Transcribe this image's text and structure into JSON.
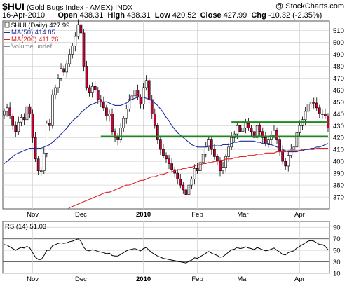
{
  "header": {
    "symbol": "$HUI",
    "description": "(Gold Bugs Index - AMEX)",
    "exchange": "INDX",
    "watermark": "@ StockCharts.com",
    "date": "16-Apr-2010",
    "open_label": "Open",
    "open": "438.31",
    "high_label": "High",
    "high": "438.31",
    "low_label": "Low",
    "low": "420.52",
    "close_label": "Close",
    "close": "427.99",
    "chg_label": "Chg",
    "chg": "-10.32 (-2.35%)"
  },
  "colors": {
    "up_candle": "#ffffff",
    "down_candle": "#cc0033",
    "ma50": "#1f2d9c",
    "ma200": "#e02020",
    "level_lines": "#1a8a1a",
    "grid": "#cfcfcf",
    "rsi_line": "#000000"
  },
  "chart_data": [
    {
      "type": "candlestick",
      "legend": [
        {
          "label": "$HUI (Daily) 427.99",
          "color": "#000000"
        },
        {
          "label": "MA(50) 414.85",
          "color": "#1f2d9c"
        },
        {
          "label": "MA(200) 411.26",
          "color": "#e02020"
        },
        {
          "label": "Volume undef",
          "color": "#888888"
        }
      ],
      "legend_position": "top-left",
      "grid": true,
      "y_axis_side": "right",
      "ylim": [
        360,
        518
      ],
      "y_ticks": [
        370,
        380,
        390,
        400,
        410,
        420,
        430,
        440,
        450,
        460,
        470,
        480,
        490,
        500,
        510
      ],
      "x_tick_labels": [
        "Nov",
        "Dec",
        "2010",
        "Feb",
        "Mar",
        "Apr"
      ],
      "x_tick_positions": [
        10,
        27,
        49,
        68,
        84,
        104
      ],
      "x_count": 115,
      "horizontal_levels": [
        {
          "value": 421,
          "from": 34,
          "to": 115
        },
        {
          "value": 433,
          "from": 80,
          "to": 115
        }
      ],
      "close": [
        442,
        445,
        438,
        430,
        425,
        433,
        437,
        435,
        446,
        440,
        420,
        402,
        392,
        392,
        407,
        432,
        430,
        456,
        462,
        470,
        478,
        475,
        482,
        490,
        497,
        505,
        515,
        508,
        480,
        462,
        458,
        463,
        460,
        452,
        450,
        445,
        438,
        440,
        425,
        420,
        418,
        428,
        436,
        444,
        452,
        455,
        460,
        454,
        448,
        462,
        468,
        452,
        440,
        430,
        418,
        410,
        405,
        402,
        398,
        393,
        390,
        385,
        380,
        376,
        372,
        380,
        385,
        394,
        392,
        399,
        406,
        412,
        418,
        410,
        404,
        400,
        392,
        395,
        404,
        412,
        420,
        423,
        430,
        425,
        428,
        432,
        428,
        425,
        420,
        430,
        425,
        420,
        415,
        418,
        422,
        426,
        418,
        409,
        400,
        396,
        405,
        410,
        412,
        424,
        430,
        435,
        442,
        448,
        450,
        449,
        445,
        440,
        440,
        438,
        428
      ],
      "ma50": [
        398,
        400,
        402,
        404,
        406,
        407,
        408,
        409,
        410,
        411,
        411,
        411,
        411,
        411,
        412,
        413,
        414,
        416,
        418,
        420,
        423,
        425,
        428,
        431,
        434,
        436,
        438,
        441,
        443,
        445,
        447,
        448,
        449,
        450,
        450,
        450,
        450,
        449,
        448,
        447,
        447,
        447,
        448,
        449,
        451,
        452,
        453,
        454,
        454,
        454,
        453,
        452,
        451,
        449,
        447,
        444,
        441,
        437,
        434,
        430,
        427,
        424,
        422,
        420,
        418,
        416,
        414,
        413,
        412,
        412,
        412,
        412,
        413,
        413,
        413,
        413,
        413,
        414,
        414,
        414,
        415,
        416,
        416,
        417,
        417,
        417,
        417,
        417,
        417,
        416,
        416,
        415,
        415,
        414,
        414,
        413,
        412,
        411,
        410,
        409,
        408,
        408,
        408,
        408,
        409,
        409,
        410,
        410,
        411,
        411,
        412,
        412,
        413,
        414,
        415
      ],
      "ma200": [
        330,
        331,
        333,
        334,
        336,
        337,
        339,
        340,
        342,
        343,
        344,
        346,
        347,
        348,
        350,
        351,
        352,
        353,
        355,
        356,
        357,
        358,
        359,
        361,
        362,
        363,
        364,
        365,
        366,
        367,
        368,
        369,
        370,
        371,
        372,
        373,
        374,
        374,
        375,
        376,
        377,
        378,
        379,
        380,
        380,
        381,
        382,
        383,
        384,
        384,
        385,
        386,
        387,
        387,
        388,
        389,
        389,
        390,
        391,
        391,
        392,
        393,
        393,
        394,
        394,
        395,
        395,
        396,
        397,
        397,
        398,
        398,
        399,
        399,
        400,
        400,
        401,
        401,
        402,
        402,
        402,
        403,
        403,
        404,
        404,
        404,
        405,
        405,
        405,
        406,
        406,
        406,
        407,
        407,
        407,
        407,
        408,
        408,
        408,
        408,
        409,
        409,
        409,
        409,
        409,
        410,
        410,
        410,
        410,
        410,
        411,
        411,
        411,
        411,
        411
      ]
    },
    {
      "type": "line",
      "legend": [
        {
          "label": "RSI(14) 51.03",
          "color": "#000000"
        }
      ],
      "ylim": [
        10,
        100
      ],
      "y_ticks": [
        10,
        30,
        50,
        70,
        90
      ],
      "reference_lines": [
        30,
        70
      ],
      "x_tick_labels": [
        "Nov",
        "Dec",
        "2010",
        "Feb",
        "Mar",
        "Apr"
      ],
      "x_tick_positions": [
        10,
        27,
        49,
        68,
        84,
        104
      ],
      "rsi": [
        60,
        59,
        56,
        53,
        50,
        53,
        55,
        54,
        57,
        54,
        46,
        38,
        34,
        34,
        41,
        50,
        50,
        58,
        60,
        62,
        63,
        62,
        63,
        65,
        66,
        68,
        70,
        66,
        55,
        50,
        49,
        51,
        50,
        48,
        47,
        46,
        44,
        45,
        41,
        40,
        40,
        43,
        46,
        49,
        51,
        52,
        53,
        51,
        49,
        53,
        55,
        50,
        46,
        43,
        40,
        38,
        36,
        35,
        34,
        33,
        32,
        31,
        30,
        29,
        28,
        31,
        33,
        37,
        36,
        39,
        42,
        45,
        48,
        45,
        43,
        41,
        38,
        39,
        43,
        47,
        51,
        52,
        55,
        53,
        54,
        56,
        54,
        53,
        51,
        55,
        53,
        51,
        49,
        50,
        52,
        54,
        50,
        47,
        43,
        42,
        46,
        48,
        49,
        54,
        57,
        60,
        63,
        66,
        67,
        66,
        63,
        60,
        60,
        57,
        51
      ]
    }
  ]
}
